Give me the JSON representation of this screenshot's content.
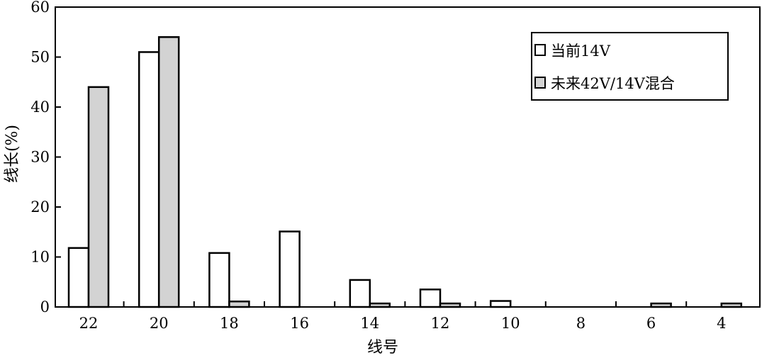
{
  "chart_data": {
    "type": "bar",
    "title": "",
    "xlabel": "线号",
    "ylabel": "线长(%)",
    "categories": [
      "22",
      "20",
      "18",
      "16",
      "14",
      "12",
      "10",
      "8",
      "6",
      "4"
    ],
    "ylim": [
      0,
      60
    ],
    "yticks": [
      "0",
      "10",
      "20",
      "30",
      "40",
      "50",
      "60"
    ],
    "grid": false,
    "legend_position": "top-right",
    "series": [
      {
        "name": "当前14V",
        "color": "#ffffff",
        "values": [
          11.8,
          51,
          10.8,
          15.1,
          5.4,
          3.5,
          1.2,
          0,
          0,
          0
        ]
      },
      {
        "name": "未来42V/14V混合",
        "color": "#d3d3d3",
        "values": [
          44,
          54,
          1.1,
          0,
          0.7,
          0.7,
          0,
          0,
          0.7,
          0.7
        ]
      }
    ]
  }
}
